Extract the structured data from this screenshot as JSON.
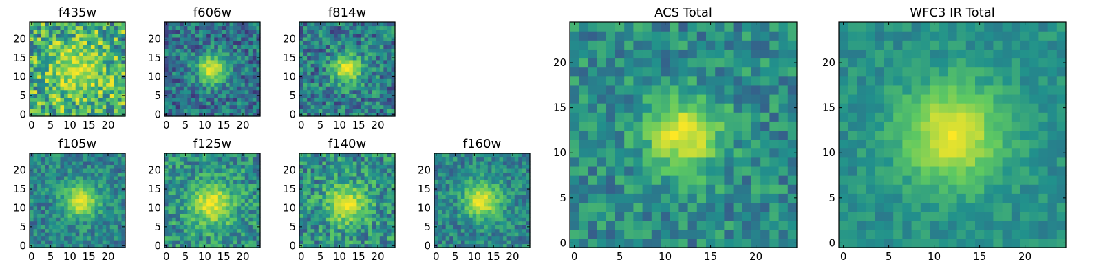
{
  "colormap": [
    "#440154",
    "#3b528b",
    "#21918c",
    "#5ec962",
    "#fde725"
  ],
  "frame_color": "#000000",
  "background": "#ffffff",
  "chart_data": [
    {
      "id": "f435w",
      "type": "heatmap",
      "title": "f435w",
      "grid_size": 25,
      "xlim": [
        0,
        24
      ],
      "ylim": [
        0,
        24
      ],
      "xticks": [
        0,
        5,
        10,
        15,
        20
      ],
      "yticks": [
        0,
        5,
        10,
        15,
        20
      ],
      "peak": {
        "x": 12,
        "y": 12
      },
      "blob_sigma": 5.5,
      "base_level": 0.62,
      "peak_level": 0.9,
      "noise_level": 0.35,
      "seed": 11
    },
    {
      "id": "f606w",
      "type": "heatmap",
      "title": "f606w",
      "grid_size": 25,
      "xlim": [
        0,
        24
      ],
      "ylim": [
        0,
        24
      ],
      "xticks": [
        0,
        5,
        10,
        15,
        20
      ],
      "yticks": [
        0,
        5,
        10,
        15,
        20
      ],
      "peak": {
        "x": 12,
        "y": 12
      },
      "blob_sigma": 2.8,
      "base_level": 0.38,
      "peak_level": 0.97,
      "noise_level": 0.22,
      "seed": 23
    },
    {
      "id": "f814w",
      "type": "heatmap",
      "title": "f814w",
      "grid_size": 25,
      "xlim": [
        0,
        24
      ],
      "ylim": [
        0,
        24
      ],
      "xticks": [
        0,
        5,
        10,
        15,
        20
      ],
      "yticks": [
        0,
        5,
        10,
        15,
        20
      ],
      "peak": {
        "x": 12,
        "y": 12
      },
      "blob_sigma": 2.8,
      "base_level": 0.42,
      "peak_level": 0.96,
      "noise_level": 0.24,
      "seed": 37
    },
    {
      "id": "f105w",
      "type": "heatmap",
      "title": "f105w",
      "grid_size": 25,
      "xlim": [
        0,
        24
      ],
      "ylim": [
        0,
        24
      ],
      "xticks": [
        0,
        5,
        10,
        15,
        20
      ],
      "yticks": [
        0,
        5,
        10,
        15,
        20
      ],
      "peak": {
        "x": 13,
        "y": 12
      },
      "blob_sigma": 3.2,
      "base_level": 0.45,
      "peak_level": 0.98,
      "noise_level": 0.18,
      "seed": 41
    },
    {
      "id": "f125w",
      "type": "heatmap",
      "title": "f125w",
      "grid_size": 25,
      "xlim": [
        0,
        24
      ],
      "ylim": [
        0,
        24
      ],
      "xticks": [
        0,
        5,
        10,
        15,
        20
      ],
      "yticks": [
        0,
        5,
        10,
        15,
        20
      ],
      "peak": {
        "x": 12,
        "y": 11
      },
      "blob_sigma": 4.2,
      "base_level": 0.5,
      "peak_level": 0.95,
      "noise_level": 0.22,
      "seed": 53
    },
    {
      "id": "f140w",
      "type": "heatmap",
      "title": "f140w",
      "grid_size": 25,
      "xlim": [
        0,
        24
      ],
      "ylim": [
        0,
        24
      ],
      "xticks": [
        0,
        5,
        10,
        15,
        20
      ],
      "yticks": [
        0,
        5,
        10,
        15,
        20
      ],
      "peak": {
        "x": 12,
        "y": 11
      },
      "blob_sigma": 3.8,
      "base_level": 0.5,
      "peak_level": 0.95,
      "noise_level": 0.24,
      "seed": 67
    },
    {
      "id": "f160w",
      "type": "heatmap",
      "title": "f160w",
      "grid_size": 25,
      "xlim": [
        0,
        24
      ],
      "ylim": [
        0,
        24
      ],
      "xticks": [
        0,
        5,
        10,
        15,
        20
      ],
      "yticks": [
        0,
        5,
        10,
        15,
        20
      ],
      "peak": {
        "x": 12,
        "y": 12
      },
      "blob_sigma": 3.5,
      "base_level": 0.45,
      "peak_level": 0.98,
      "noise_level": 0.18,
      "seed": 79
    },
    {
      "id": "acs-total",
      "type": "heatmap",
      "title": "ACS Total",
      "grid_size": 25,
      "xlim": [
        0,
        24
      ],
      "ylim": [
        0,
        24
      ],
      "xticks": [
        0,
        5,
        10,
        15,
        20
      ],
      "yticks": [
        0,
        5,
        10,
        15,
        20
      ],
      "peak": {
        "x": 12,
        "y": 12
      },
      "blob_sigma": 3.0,
      "base_level": 0.48,
      "peak_level": 0.98,
      "noise_level": 0.18,
      "seed": 97
    },
    {
      "id": "wfc3-ir-total",
      "type": "heatmap",
      "title": "WFC3 IR Total",
      "grid_size": 25,
      "xlim": [
        0,
        24
      ],
      "ylim": [
        0,
        24
      ],
      "xticks": [
        0,
        5,
        10,
        15,
        20
      ],
      "yticks": [
        0,
        5,
        10,
        15,
        20
      ],
      "peak": {
        "x": 12,
        "y": 12
      },
      "blob_sigma": 4.0,
      "base_level": 0.5,
      "peak_level": 0.98,
      "noise_level": 0.1,
      "seed": 113
    }
  ]
}
